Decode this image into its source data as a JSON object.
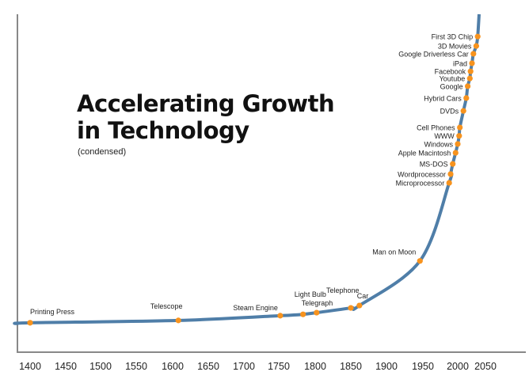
{
  "chart_data": {
    "type": "line",
    "title_lines": [
      "Accelerating Growth",
      "in Technology"
    ],
    "subtitle": "(condensed)",
    "xlabel": "",
    "ylabel": "",
    "x_ticks": [
      "1400",
      "1450",
      "1500",
      "1550",
      "1600",
      "1650",
      "1700",
      "1750",
      "1800",
      "1850",
      "1900",
      "1950",
      "2000",
      "2050"
    ],
    "xlim": [
      1400,
      2050
    ],
    "y_axis_labels": false,
    "grid": false,
    "legend": "none",
    "colors": {
      "line": "#4f7ea8",
      "points": "#f7931e",
      "axis": "#888888"
    },
    "points": [
      {
        "label": "Printing Press",
        "x": 1400,
        "level": 8.7
      },
      {
        "label": "Telescope",
        "x": 1608,
        "level": 9.4
      },
      {
        "label": "Steam Engine",
        "x": 1751,
        "level": 10.8
      },
      {
        "label": "Telegraph",
        "x": 1783,
        "level": 11.2
      },
      {
        "label": "Light Bulb",
        "x": 1802,
        "level": 11.7
      },
      {
        "label": "Telephone",
        "x": 1850,
        "level": 13.1
      },
      {
        "label": "Car",
        "x": 1862,
        "level": 13.8
      },
      {
        "label": "Man on Moon",
        "x": 1947,
        "level": 27
      },
      {
        "label": "Microprocessor",
        "x": 1988,
        "level": 50.1
      },
      {
        "label": "Wordprocessor",
        "x": 1990,
        "level": 52.7
      },
      {
        "label": "MS-DOS",
        "x": 1993,
        "level": 55.7
      },
      {
        "label": "Apple Macintosh",
        "x": 1997,
        "level": 59
      },
      {
        "label": "Windows",
        "x": 2000,
        "level": 61.6
      },
      {
        "label": "WWW",
        "x": 2002,
        "level": 64
      },
      {
        "label": "Cell Phones",
        "x": 2003,
        "level": 66.5
      },
      {
        "label": "DVDs",
        "x": 2008,
        "level": 71.4
      },
      {
        "label": "Hybrid Cars",
        "x": 2012,
        "level": 75.2
      },
      {
        "label": "Google",
        "x": 2014,
        "level": 78.7
      },
      {
        "label": "Youtube",
        "x": 2017,
        "level": 81
      },
      {
        "label": "Facebook",
        "x": 2018,
        "level": 83.1
      },
      {
        "label": "iPad",
        "x": 2020,
        "level": 85.5
      },
      {
        "label": "Google Driverless Car",
        "x": 2022,
        "level": 88.3
      },
      {
        "label": "3D Movies",
        "x": 2026,
        "level": 90.6
      },
      {
        "label": "First 3D Chip",
        "x": 2028,
        "level": 93.4
      }
    ]
  }
}
